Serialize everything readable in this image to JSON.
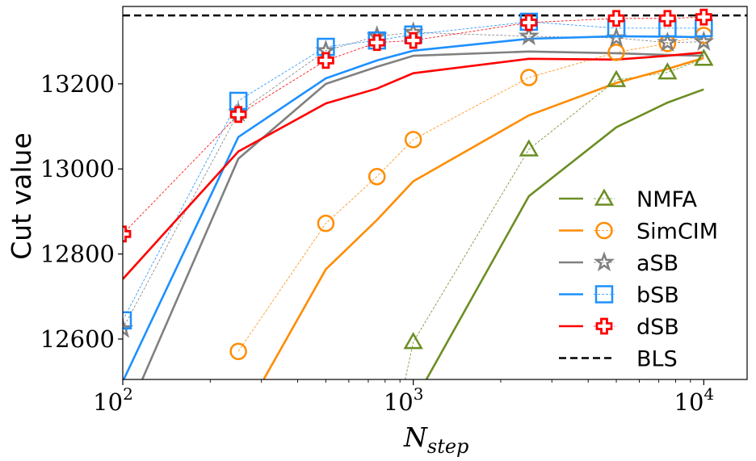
{
  "chart_data": {
    "type": "line",
    "title": "",
    "xlabel": "N",
    "xlabel_subscript": "step",
    "ylabel": "Cut value",
    "xscale": "log",
    "xlim": [
      100,
      14100
    ],
    "ylim": [
      12505,
      13382
    ],
    "xticks": [
      {
        "value": 100,
        "base": "10",
        "exp": "2"
      },
      {
        "value": 1000,
        "base": "10",
        "exp": "3"
      },
      {
        "value": 10000,
        "base": "10",
        "exp": "4"
      }
    ],
    "yticks": [
      12600,
      12800,
      13000,
      13200
    ],
    "yticklabels": [
      "12600",
      "12800",
      "13000",
      "13200"
    ],
    "grid": false,
    "legend_placement": "lower-right",
    "x": [
      100,
      250,
      500,
      750,
      1000,
      2500,
      5000,
      7500,
      10000
    ],
    "series": [
      {
        "name": "NMFA",
        "color": "#6b8e23",
        "marker": "triangle",
        "line_values": [
          null,
          null,
          null,
          null,
          12450,
          12936,
          13098,
          13156,
          13187
        ],
        "marker_values": [
          null,
          null,
          null,
          12200,
          12593,
          13046,
          13209,
          13227,
          13259
        ]
      },
      {
        "name": "SimCIM",
        "color": "#ff8c00",
        "marker": "circle",
        "line_values": [
          null,
          12400,
          12764,
          12880,
          12971,
          13126,
          13202,
          13235,
          13261
        ],
        "marker_values": [
          null,
          12571,
          12872,
          12982,
          13069,
          13215,
          13274,
          13295,
          13314
        ]
      },
      {
        "name": "aSB",
        "color": "#808080",
        "marker": "star",
        "line_values": [
          12400,
          13024,
          13200,
          13240,
          13266,
          13276,
          13272,
          13268,
          13266
        ],
        "marker_values": [
          12624,
          13132,
          13278,
          13312,
          13321,
          13312,
          13308,
          13297,
          13299
        ]
      },
      {
        "name": "bSB",
        "color": "#1e90ff",
        "marker": "square",
        "line_values": [
          12500,
          13075,
          13213,
          13255,
          13278,
          13306,
          13312,
          13311,
          13310
        ],
        "marker_values": [
          12644,
          13160,
          13287,
          13302,
          13316,
          13346,
          13331,
          13331,
          13331
        ]
      },
      {
        "name": "dSB",
        "color": "#ff0000",
        "marker": "plus",
        "line_values": [
          12741,
          13041,
          13154,
          13189,
          13225,
          13259,
          13257,
          13266,
          13274
        ],
        "marker_values": [
          12847,
          13128,
          13255,
          13297,
          13302,
          13344,
          13354,
          13354,
          13357
        ]
      }
    ],
    "reference": {
      "name": "BLS",
      "value": 13361,
      "color": "#000000",
      "style": "dashed"
    }
  }
}
